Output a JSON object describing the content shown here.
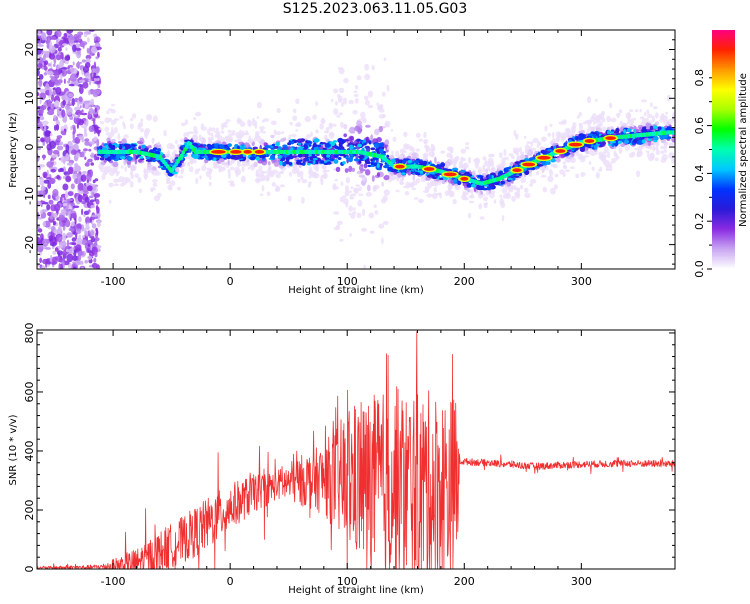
{
  "figure": {
    "title": "S125.2023.063.11.05.G03"
  },
  "chart_data": [
    {
      "type": "heatmap",
      "xlabel": "Height of straight line (km)",
      "ylabel": "Frequency (Hz)",
      "xlim": [
        -165,
        380
      ],
      "ylim": [
        -25,
        24
      ],
      "xticks": [
        "-100",
        "0",
        "100",
        "200",
        "300"
      ],
      "yticks": [
        "-20",
        "-10",
        "0",
        "10",
        "20"
      ],
      "colorbar": {
        "label": "Normalized spectral amplitude",
        "range": [
          0,
          1
        ],
        "ticks": [
          "0.0",
          "0.2",
          "0.4",
          "0.6",
          "0.8"
        ],
        "colormap": [
          "#ffffff",
          "#c9a6f2",
          "#8a2be2",
          "#2a1ad8",
          "#0033ff",
          "#00c8ff",
          "#00ffb0",
          "#00ff00",
          "#a8ff00",
          "#ffff00",
          "#ff9900",
          "#ff2200",
          "#ff0080"
        ]
      },
      "ridge_frequency_hz": {
        "x": [
          -110,
          -80,
          -60,
          -50,
          -42,
          -35,
          -30,
          -20,
          0,
          30,
          50,
          80,
          110,
          130,
          140,
          160,
          180,
          200,
          215,
          230,
          260,
          300,
          330,
          375
        ],
        "y": [
          -1,
          -1,
          -2,
          -5,
          -2,
          1,
          -1,
          -1,
          -1,
          -1,
          -1,
          -1,
          -1,
          -2,
          -4,
          -4,
          -5,
          -6.5,
          -7.5,
          -6.5,
          -3,
          1,
          2,
          3
        ]
      }
    },
    {
      "type": "line",
      "xlabel": "Height of straight line (km)",
      "ylabel": "SNR (10 * v/v)",
      "xlim": [
        -165,
        380
      ],
      "ylim": [
        0,
        810
      ],
      "xticks": [
        "-100",
        "0",
        "100",
        "200",
        "300"
      ],
      "yticks": [
        "0",
        "200",
        "400",
        "600",
        "800"
      ],
      "color": "#f03030",
      "baseline": {
        "x": [
          -165,
          -120,
          -100,
          -80,
          -60,
          -40,
          -20,
          0,
          20,
          40,
          60,
          80,
          100,
          120,
          140,
          160,
          180,
          194,
          196,
          220,
          260,
          300,
          340,
          380
        ],
        "y": [
          4,
          6,
          10,
          20,
          60,
          100,
          150,
          210,
          255,
          285,
          300,
          305,
          300,
          290,
          285,
          280,
          275,
          270,
          365,
          360,
          348,
          355,
          358,
          356
        ]
      },
      "spread": {
        "x": [
          -165,
          -110,
          -90,
          -60,
          -20,
          0,
          40,
          80,
          100,
          120,
          140,
          170,
          194,
          196,
          380
        ],
        "y": [
          4,
          8,
          40,
          70,
          90,
          80,
          50,
          120,
          240,
          300,
          330,
          330,
          320,
          12,
          12
        ]
      }
    }
  ]
}
